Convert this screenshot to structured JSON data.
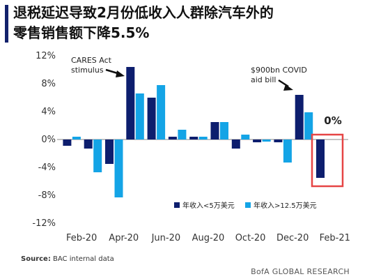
{
  "title_line1": "退税延迟导致2月份低收入人群除汽车外的",
  "title_line2": "零售销售额下降5.5%",
  "source_label": "Source:",
  "source_text": "BAC internal data",
  "brand": "BofA GLOBAL RESEARCH",
  "colors": {
    "dark": "#0d1e6e",
    "light": "#14a4e6",
    "highlight": "#e64545"
  },
  "chart_data": {
    "type": "bar",
    "categories": [
      "Feb-20",
      "Mar-20",
      "Apr-20",
      "May-20",
      "Jun-20",
      "Jul-20",
      "Aug-20",
      "Sep-20",
      "Oct-20",
      "Nov-20",
      "Dec-20",
      "Jan-21",
      "Feb-21"
    ],
    "x_tick_labels": [
      "Feb-20",
      "Apr-20",
      "Jun-20",
      "Aug-20",
      "Oct-20",
      "Dec-20",
      "Feb-21"
    ],
    "y_ticks": [
      12,
      8,
      4,
      0,
      -4,
      -8,
      -12
    ],
    "y_tick_labels": [
      "12%",
      "8%",
      "4%",
      "0%",
      "-4%",
      "-8%",
      "-12%"
    ],
    "ylim": [
      -12,
      12
    ],
    "series": [
      {
        "name": "年收入<5万美元",
        "values": [
          -0.9,
          -1.3,
          -3.5,
          10.4,
          6.0,
          0.4,
          0.4,
          2.5,
          -1.3,
          -0.4,
          -0.4,
          6.4,
          -5.5
        ]
      },
      {
        "name": "年收入>12.5万美元",
        "values": [
          0.4,
          -4.7,
          -8.3,
          6.6,
          7.8,
          1.4,
          0.4,
          2.5,
          0.7,
          -0.3,
          -3.3,
          3.9,
          0.0
        ]
      }
    ],
    "legend_position": "bottom-right",
    "annotations": [
      {
        "lines": [
          "CARES Act",
          "stimulus"
        ],
        "category": "May-20"
      },
      {
        "lines": [
          "$900bn COVID",
          "aid bill"
        ],
        "category": "Jan-21"
      }
    ],
    "highlight": {
      "category": "Feb-21",
      "label": "0%"
    }
  }
}
